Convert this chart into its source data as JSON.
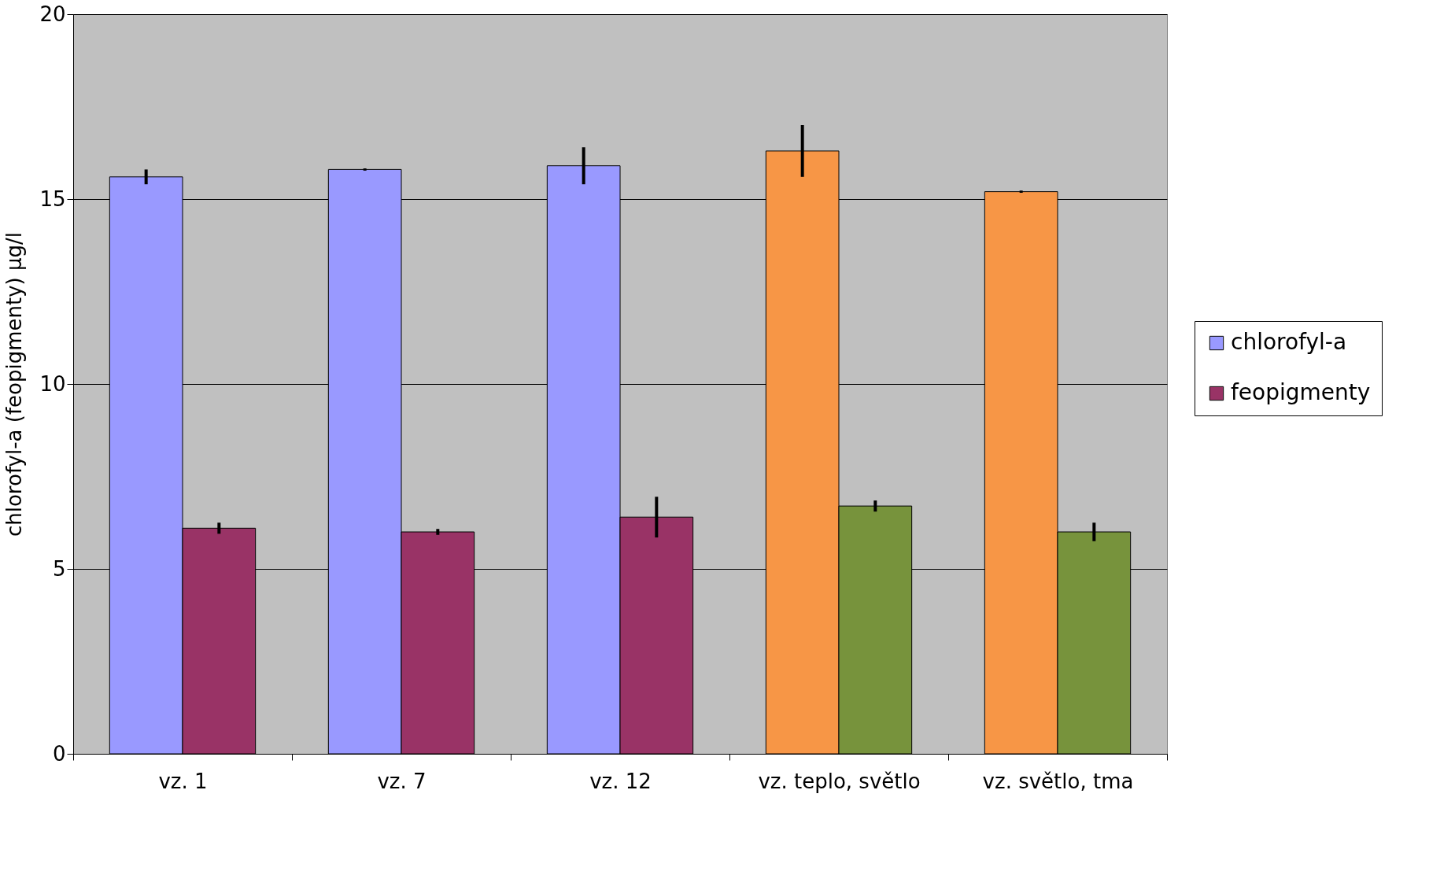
{
  "chart_data": {
    "type": "bar",
    "ylabel": "chlorofyl-a (feopigmenty) µg/l",
    "categories": [
      "vz. 1",
      "vz. 7",
      "vz. 12",
      "vz. teplo, světlo",
      "vz. světlo, tma"
    ],
    "series": [
      {
        "name": "chlorofyl-a",
        "color": "#9999ff",
        "colors": [
          "#9999ff",
          "#9999ff",
          "#9999ff",
          "#f79646",
          "#f79646"
        ],
        "values": [
          15.6,
          15.8,
          15.9,
          16.3,
          15.2
        ],
        "errors": [
          0.2,
          0.03,
          0.5,
          0.7,
          0.03
        ]
      },
      {
        "name": "feopigmenty",
        "color": "#993366",
        "colors": [
          "#993366",
          "#993366",
          "#993366",
          "#77933c",
          "#77933c"
        ],
        "values": [
          6.1,
          6.0,
          6.4,
          6.7,
          6.0
        ],
        "errors": [
          0.15,
          0.08,
          0.55,
          0.15,
          0.25
        ]
      }
    ],
    "ylim": [
      0,
      20
    ],
    "yticks": [
      0,
      5,
      10,
      15,
      20
    ],
    "grid": "y",
    "legend": "right"
  }
}
